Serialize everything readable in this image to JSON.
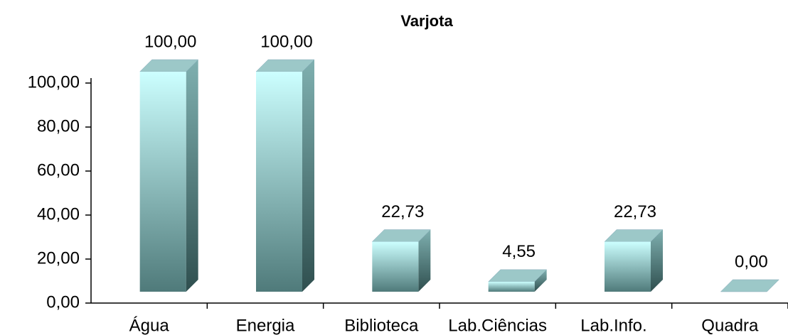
{
  "chart_data": {
    "type": "bar3d",
    "title": "Varjota",
    "categories": [
      "Água",
      "Energia",
      "Biblioteca",
      "Lab.Ciências",
      "Lab.Info.",
      "Quadra"
    ],
    "values": [
      100,
      100,
      22.73,
      4.55,
      22.73,
      0
    ],
    "value_labels": [
      "100,00",
      "100,00",
      "22,73",
      "4,55",
      "22,73",
      "0,00"
    ],
    "color": "#bfeeee",
    "ylim": [
      0,
      100
    ],
    "yticks": [
      {
        "value": 0,
        "label": "0,00"
      },
      {
        "value": 20,
        "label": "20,00"
      },
      {
        "value": 40,
        "label": "40,00"
      },
      {
        "value": 60,
        "label": "60,00"
      },
      {
        "value": 80,
        "label": "80,00"
      },
      {
        "value": 100,
        "label": "100,00"
      }
    ],
    "grid": false
  }
}
